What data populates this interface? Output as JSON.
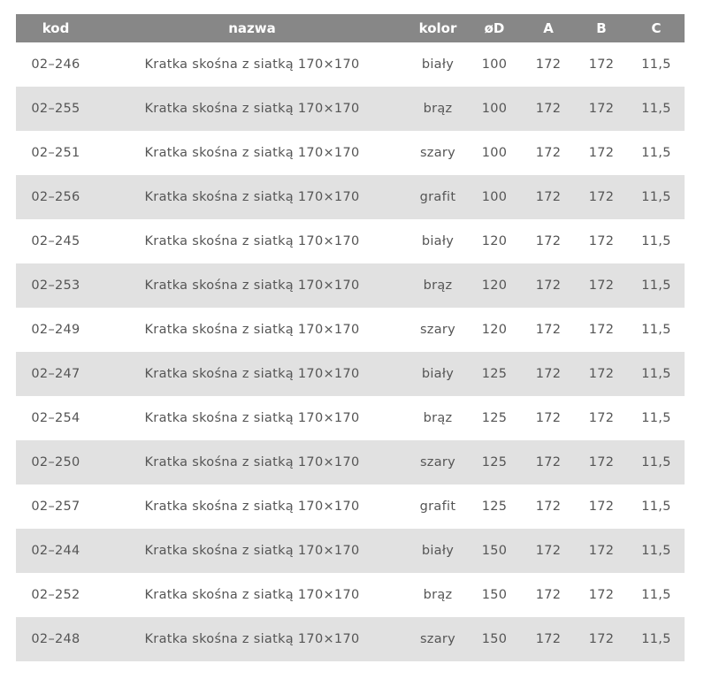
{
  "table": {
    "headers": [
      "kod",
      "nazwa",
      "kolor",
      "øD",
      "A",
      "B",
      "C"
    ],
    "rows": [
      [
        "02–246",
        "Kratka skośna z siatką 170×170",
        "biały",
        "100",
        "172",
        "172",
        "11,5"
      ],
      [
        "02–255",
        "Kratka skośna z siatką 170×170",
        "brąz",
        "100",
        "172",
        "172",
        "11,5"
      ],
      [
        "02–251",
        "Kratka skośna z siatką 170×170",
        "szary",
        "100",
        "172",
        "172",
        "11,5"
      ],
      [
        "02–256",
        "Kratka skośna z siatką 170×170",
        "grafit",
        "100",
        "172",
        "172",
        "11,5"
      ],
      [
        "02–245",
        "Kratka skośna z siatką 170×170",
        "biały",
        "120",
        "172",
        "172",
        "11,5"
      ],
      [
        "02–253",
        "Kratka skośna z siatką 170×170",
        "brąz",
        "120",
        "172",
        "172",
        "11,5"
      ],
      [
        "02–249",
        "Kratka skośna z siatką 170×170",
        "szary",
        "120",
        "172",
        "172",
        "11,5"
      ],
      [
        "02–247",
        "Kratka skośna z siatką 170×170",
        "biały",
        "125",
        "172",
        "172",
        "11,5"
      ],
      [
        "02–254",
        "Kratka skośna z siatką 170×170",
        "brąz",
        "125",
        "172",
        "172",
        "11,5"
      ],
      [
        "02–250",
        "Kratka skośna z siatką 170×170",
        "szary",
        "125",
        "172",
        "172",
        "11,5"
      ],
      [
        "02–257",
        "Kratka skośna z siatką 170×170",
        "grafit",
        "125",
        "172",
        "172",
        "11,5"
      ],
      [
        "02–244",
        "Kratka skośna z siatką 170×170",
        "biały",
        "150",
        "172",
        "172",
        "11,5"
      ],
      [
        "02–252",
        "Kratka skośna z siatką 170×170",
        "brąz",
        "150",
        "172",
        "172",
        "11,5"
      ],
      [
        "02–248",
        "Kratka skośna z siatką 170×170",
        "szary",
        "150",
        "172",
        "172",
        "11,5"
      ]
    ]
  },
  "colors": {
    "header_bg": "#878787",
    "alt_row_bg": "#e1e1e1",
    "text": "#555555"
  }
}
